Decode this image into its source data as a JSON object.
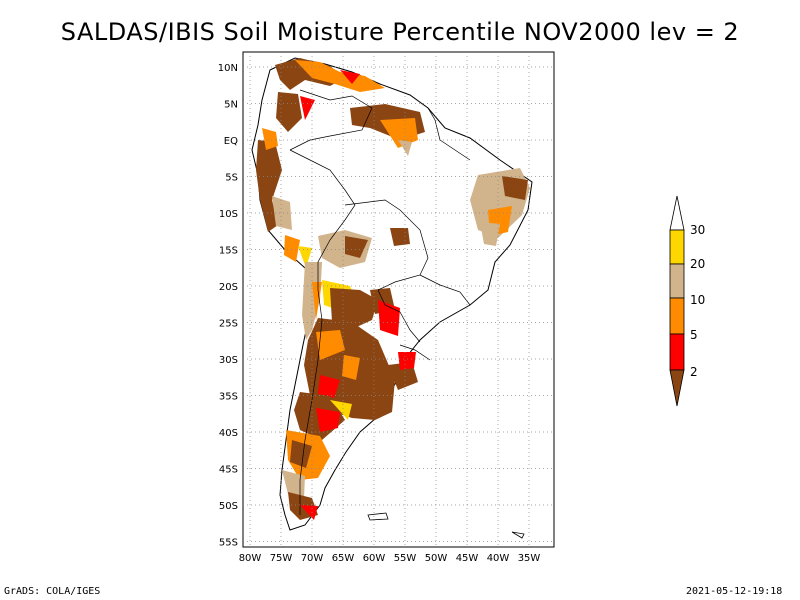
{
  "title": "SALDAS/IBIS Soil Moisture Percentile NOV2000 lev = 2",
  "footer": {
    "left": "GrADS: COLA/IGES",
    "right": "2021-05-12-19:18"
  },
  "map": {
    "lon_range": [
      -81,
      -30
    ],
    "lat_range": [
      -56,
      12
    ],
    "grid_lines": "dotted",
    "lon_ticks": [
      "80W",
      "75W",
      "70W",
      "65W",
      "60W",
      "55W",
      "50W",
      "45W",
      "40W",
      "35W"
    ],
    "lat_ticks": [
      "10N",
      "5N",
      "EQ",
      "5S",
      "10S",
      "15S",
      "20S",
      "25S",
      "30S",
      "35S",
      "40S",
      "45S",
      "50S",
      "55S"
    ]
  },
  "legend": {
    "levels": [
      "2",
      "5",
      "10",
      "20",
      "30"
    ],
    "colors": {
      "below_2": "#8B4513",
      "2_5": "#FF0000",
      "5_10": "#FF8C00",
      "10_20": "#D2B48C",
      "20_30": "#FFD700",
      "above_30": "#FFFFFF"
    }
  }
}
